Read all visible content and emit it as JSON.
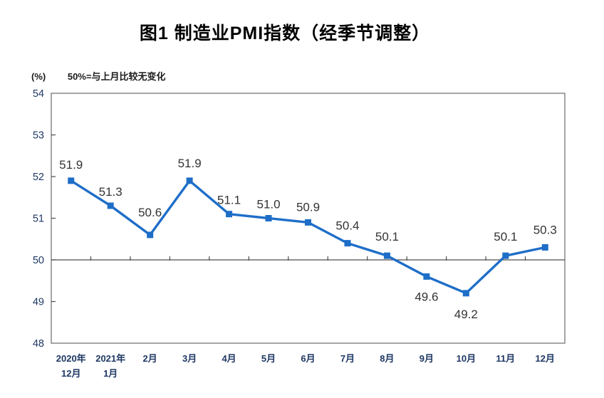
{
  "chart_data": {
    "type": "line",
    "title": "图1 制造业PMI指数（经季节调整）",
    "y_unit_label": "(%)",
    "annotation": "50%=与上月比较无变化",
    "series_name": "制造业PMI指数",
    "categories": [
      "2020年\n12月",
      "2021年\n1月",
      "2月",
      "3月",
      "4月",
      "5月",
      "6月",
      "7月",
      "8月",
      "9月",
      "10月",
      "11月",
      "12月"
    ],
    "values": [
      51.9,
      51.3,
      50.6,
      51.9,
      51.1,
      51.0,
      50.9,
      50.4,
      50.1,
      49.6,
      49.2,
      50.1,
      50.3
    ],
    "value_labels": [
      "51.9",
      "51.3",
      "50.6",
      "51.9",
      "51.1",
      "51.0",
      "50.9",
      "50.4",
      "50.1",
      "49.6",
      "49.2",
      "50.1",
      "50.3"
    ],
    "ylim": [
      48,
      54
    ],
    "yticks": [
      48,
      49,
      50,
      51,
      52,
      53,
      54
    ],
    "reference_line": 50,
    "grid": false,
    "legend_position": "none",
    "marker": "square",
    "colors": {
      "line": "#1e6ec8",
      "marker": "#1e6ec8",
      "plot_border": "#7f7f7f",
      "axis_line": "#4d4d4d",
      "value_label": "#333333",
      "tick_label": "#1f3864",
      "title": "#000000"
    }
  }
}
